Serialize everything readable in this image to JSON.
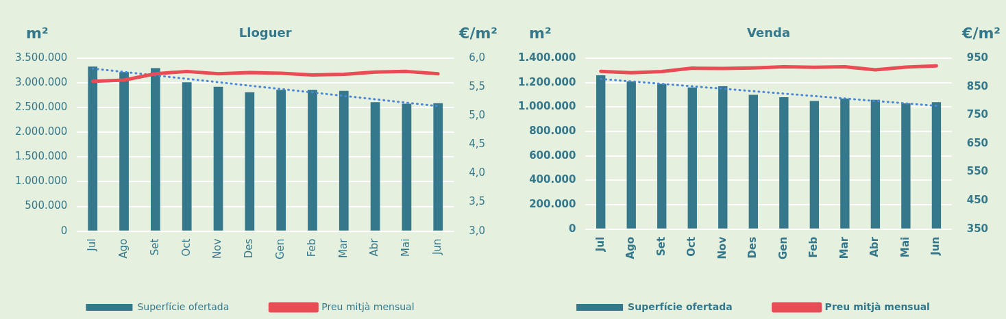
{
  "chart_data": [
    {
      "type": "bar",
      "title": "Lloguer",
      "ylabel": "m²",
      "y2label": "€/m²",
      "categories": [
        "Jul",
        "Ago",
        "Set",
        "Oct",
        "Nov",
        "Des",
        "Gen",
        "Feb",
        "Mar",
        "Abr",
        "Mai",
        "Jun"
      ],
      "series": [
        {
          "name": "Superfície ofertada",
          "color": "#35788c",
          "values": [
            3330000,
            3220000,
            3300000,
            3010000,
            2920000,
            2810000,
            2860000,
            2860000,
            2840000,
            2610000,
            2580000,
            2590000
          ]
        },
        {
          "name": "Preu mitjà mensual",
          "type": "line",
          "axis": "y2",
          "color": "#e84c55",
          "values": [
            5.6,
            5.62,
            5.73,
            5.77,
            5.73,
            5.75,
            5.74,
            5.71,
            5.72,
            5.76,
            5.77,
            5.73
          ]
        },
        {
          "type": "line",
          "line_style": "dotted",
          "color": "#4a86d8",
          "values": [
            3290000,
            null,
            null,
            null,
            null,
            null,
            null,
            null,
            null,
            null,
            null,
            2530000
          ]
        }
      ],
      "ylim": [
        0,
        3500000
      ],
      "yticks": [
        {
          "value": 0,
          "label": "0"
        },
        {
          "value": 500000,
          "label": "500.000"
        },
        {
          "value": 1000000,
          "label": "1.000.000"
        },
        {
          "value": 1500000,
          "label": "1.500.000"
        },
        {
          "value": 2000000,
          "label": "2.000.000"
        },
        {
          "value": 2500000,
          "label": "2.500.000"
        },
        {
          "value": 3000000,
          "label": "3.000.000"
        },
        {
          "value": 3500000,
          "label": "3.500.000"
        }
      ],
      "y2lim": [
        3,
        6
      ],
      "y2ticks": [
        {
          "value": 3,
          "label": "3,0"
        },
        {
          "value": 3.5,
          "label": "3,5"
        },
        {
          "value": 4,
          "label": "4,0"
        },
        {
          "value": 4.5,
          "label": "4,5"
        },
        {
          "value": 5,
          "label": "5,0"
        },
        {
          "value": 5.5,
          "label": "5,5"
        },
        {
          "value": 6,
          "label": "6,0"
        }
      ],
      "grid": "y",
      "legend": "bottom"
    },
    {
      "type": "bar",
      "title": "Venda",
      "ylabel": "m²",
      "y2label": "€/m²",
      "categories": [
        "Jul",
        "Ago",
        "Set",
        "Oct",
        "Nov",
        "Des",
        "Gen",
        "Feb",
        "Mar",
        "Abr",
        "Mai",
        "Jun"
      ],
      "series": [
        {
          "name": "Superfície ofertada",
          "color": "#35788c",
          "values": [
            1260000,
            1210000,
            1190000,
            1160000,
            1170000,
            1100000,
            1080000,
            1050000,
            1070000,
            1060000,
            1030000,
            1040000
          ]
        },
        {
          "name": "Preu mitjà mensual",
          "type": "line",
          "axis": "y2",
          "color": "#e84c55",
          "values": [
            904,
            899,
            903,
            915,
            914,
            916,
            920,
            918,
            920,
            909,
            919,
            923
          ]
        },
        {
          "type": "line",
          "line_style": "dotted",
          "color": "#4a86d8",
          "values": [
            1230000,
            null,
            null,
            null,
            null,
            null,
            null,
            null,
            null,
            null,
            null,
            1010000
          ]
        }
      ],
      "ylim": [
        0,
        1400000
      ],
      "yticks": [
        {
          "value": 0,
          "label": "0"
        },
        {
          "value": 200000,
          "label": "200.000"
        },
        {
          "value": 400000,
          "label": "400.000"
        },
        {
          "value": 600000,
          "label": "600.000"
        },
        {
          "value": 800000,
          "label": "800.000"
        },
        {
          "value": 1000000,
          "label": "1.000.000"
        },
        {
          "value": 1200000,
          "label": "1.200.000"
        },
        {
          "value": 1400000,
          "label": "1.400.000"
        }
      ],
      "y2lim": [
        350,
        950
      ],
      "y2ticks": [
        350,
        450,
        550,
        650,
        750,
        850,
        950
      ],
      "grid": "y",
      "legend": "bottom"
    }
  ]
}
